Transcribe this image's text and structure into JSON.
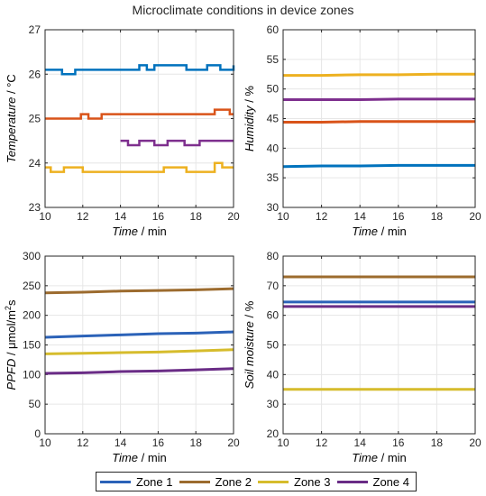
{
  "title": "Microclimate conditions in device zones",
  "colors": {
    "zone1": "#0072BD",
    "zone2": "#D95319",
    "zone3": "#EDB120",
    "zone4": "#7E2F8E",
    "legend_zone1": "#2B62B8",
    "legend_zone2": "#9C6B2E",
    "legend_zone3": "#D6BC2C",
    "legend_zone4": "#6A2C86",
    "soil_zone1": "#2B62B8",
    "soil_zone2": "#9C6B2E",
    "soil_zone3": "#D6BC2C",
    "soil_zone4": "#6A2C86"
  },
  "legend": {
    "items": [
      {
        "label": "Zone 1",
        "color": "#2B62B8"
      },
      {
        "label": "Zone 2",
        "color": "#9C6B2E"
      },
      {
        "label": "Zone 3",
        "color": "#D6BC2C"
      },
      {
        "label": "Zone 4",
        "color": "#6A2C86"
      }
    ]
  },
  "chart_data": [
    {
      "id": "temperature",
      "type": "line",
      "xlabel_italic": "Time",
      "xlabel_rest": " / min",
      "ylabel_italic": "Temperature",
      "ylabel_rest": " / °C",
      "xlim": [
        10,
        20
      ],
      "ylim": [
        23,
        27
      ],
      "xticks": [
        "10",
        "12",
        "14",
        "16",
        "18",
        "20"
      ],
      "yticks": [
        "23",
        "24",
        "25",
        "26",
        "27"
      ],
      "grid": true,
      "series": [
        {
          "color": "#0072BD",
          "x": [
            10,
            10.8,
            10.9,
            11.6,
            15.0,
            15.4,
            15.8,
            17.5,
            18.6,
            19.3,
            20
          ],
          "y": [
            26.1,
            26.1,
            26.0,
            26.1,
            26.2,
            26.1,
            26.2,
            26.1,
            26.2,
            26.1,
            26.2
          ]
        },
        {
          "color": "#D95319",
          "x": [
            10,
            11.9,
            12.3,
            13.0,
            14.0,
            15.0,
            19.0,
            19.8,
            20
          ],
          "y": [
            25.0,
            25.1,
            25.0,
            25.1,
            25.1,
            25.1,
            25.2,
            25.1,
            25.1
          ]
        },
        {
          "color": "#EDB120",
          "x": [
            10,
            10.3,
            11.0,
            12.0,
            16.3,
            17.5,
            19.0,
            19.4,
            20
          ],
          "y": [
            23.9,
            23.8,
            23.9,
            23.8,
            23.9,
            23.8,
            24.0,
            23.9,
            23.9
          ]
        },
        {
          "color": "#7E2F8E",
          "x": [
            14.0,
            14.4,
            15.0,
            15.8,
            16.5,
            17.4,
            18.2,
            20
          ],
          "y": [
            24.5,
            24.4,
            24.5,
            24.4,
            24.5,
            24.4,
            24.5,
            24.5
          ]
        }
      ]
    },
    {
      "id": "humidity",
      "type": "line",
      "xlabel_italic": "Time",
      "xlabel_rest": " / min",
      "ylabel_italic": "Humidity",
      "ylabel_rest": " / %",
      "xlim": [
        10,
        20
      ],
      "ylim": [
        30,
        60
      ],
      "xticks": [
        "10",
        "12",
        "14",
        "16",
        "18",
        "20"
      ],
      "yticks": [
        "30",
        "35",
        "40",
        "45",
        "50",
        "55",
        "60"
      ],
      "grid": true,
      "series": [
        {
          "color": "#EDB120",
          "x": [
            10,
            12,
            14,
            16,
            18,
            20
          ],
          "y": [
            52.3,
            52.3,
            52.4,
            52.4,
            52.5,
            52.5
          ]
        },
        {
          "color": "#7E2F8E",
          "x": [
            10,
            12,
            14,
            16,
            18,
            20
          ],
          "y": [
            48.2,
            48.2,
            48.2,
            48.3,
            48.3,
            48.3
          ]
        },
        {
          "color": "#D95319",
          "x": [
            10,
            12,
            14,
            16,
            18,
            20
          ],
          "y": [
            44.4,
            44.4,
            44.5,
            44.5,
            44.5,
            44.5
          ]
        },
        {
          "color": "#0072BD",
          "x": [
            10,
            12,
            14,
            16,
            18,
            20
          ],
          "y": [
            36.9,
            37.0,
            37.0,
            37.1,
            37.1,
            37.1
          ]
        }
      ]
    },
    {
      "id": "ppfd",
      "type": "line",
      "xlabel_italic": "Time",
      "xlabel_rest": " / min",
      "ylabel_italic": "PPFD",
      "ylabel_rest": " / μmol/m",
      "ylabel_sup": "2",
      "ylabel_tail": "s",
      "xlim": [
        10,
        20
      ],
      "ylim": [
        0,
        300
      ],
      "xticks": [
        "10",
        "12",
        "14",
        "16",
        "18",
        "20"
      ],
      "yticks": [
        "0",
        "50",
        "100",
        "150",
        "200",
        "250",
        "300"
      ],
      "grid": true,
      "series": [
        {
          "color": "#9C6B2E",
          "x": [
            10,
            12,
            14,
            16,
            18,
            20
          ],
          "y": [
            238,
            239,
            241,
            242,
            243,
            245
          ]
        },
        {
          "color": "#2B62B8",
          "x": [
            10,
            12,
            14,
            16,
            18,
            20
          ],
          "y": [
            163,
            165,
            167,
            169,
            170,
            172
          ]
        },
        {
          "color": "#D6BC2C",
          "x": [
            10,
            12,
            14,
            16,
            18,
            20
          ],
          "y": [
            135,
            136,
            137,
            138,
            140,
            142
          ]
        },
        {
          "color": "#6A2C86",
          "x": [
            10,
            12,
            14,
            16,
            18,
            20
          ],
          "y": [
            102,
            103,
            105,
            106,
            108,
            110
          ]
        }
      ]
    },
    {
      "id": "soil",
      "type": "line",
      "xlabel_italic": "Time",
      "xlabel_rest": " / min",
      "ylabel_italic": "Soil moisture",
      "ylabel_rest": " / %",
      "xlim": [
        10,
        20
      ],
      "ylim": [
        20,
        80
      ],
      "xticks": [
        "10",
        "12",
        "14",
        "16",
        "18",
        "20"
      ],
      "yticks": [
        "20",
        "30",
        "40",
        "50",
        "60",
        "70",
        "80"
      ],
      "grid": true,
      "series": [
        {
          "color": "#9C6B2E",
          "x": [
            10,
            20
          ],
          "y": [
            73,
            73
          ]
        },
        {
          "color": "#2B62B8",
          "x": [
            10,
            20
          ],
          "y": [
            64.5,
            64.5
          ]
        },
        {
          "color": "#6A2C86",
          "x": [
            10,
            20
          ],
          "y": [
            63,
            63
          ]
        },
        {
          "color": "#D6BC2C",
          "x": [
            10,
            20
          ],
          "y": [
            35,
            35
          ]
        }
      ]
    }
  ]
}
